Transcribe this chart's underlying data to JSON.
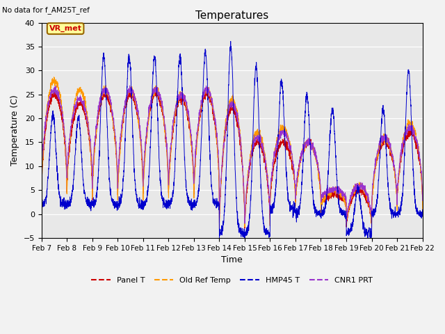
{
  "title": "Temperatures",
  "no_data_text": "No data for f_AM25T_ref",
  "annotation_text": "VR_met",
  "xlabel": "Time",
  "ylabel": "Temperature (C)",
  "ylim": [
    -5,
    40
  ],
  "xlim": [
    0,
    15
  ],
  "yticks": [
    -5,
    0,
    5,
    10,
    15,
    20,
    25,
    30,
    35,
    40
  ],
  "xtick_labels": [
    "Feb 7",
    "Feb 8",
    "Feb 9",
    "Feb 10",
    "Feb 11",
    "Feb 12",
    "Feb 13",
    "Feb 14",
    "Feb 15",
    "Feb 16",
    "Feb 17",
    "Feb 18",
    "Feb 19",
    "Feb 20",
    "Feb 21",
    "Feb 22"
  ],
  "bg_color": "#e8e8e8",
  "fig_color": "#f2f2f2",
  "colors": {
    "panel": "#cc0000",
    "old_ref": "#ff9900",
    "hmp45": "#0000cc",
    "cnr1": "#9933cc"
  },
  "legend": [
    "Panel T",
    "Old Ref Temp",
    "HMP45 T",
    "CNR1 PRT"
  ],
  "panel_peaks": [
    25,
    23,
    25,
    25,
    25,
    24,
    25,
    22,
    15,
    15,
    15,
    4,
    5,
    15,
    17
  ],
  "panel_nights": [
    4,
    4,
    3,
    3,
    3,
    3,
    3,
    -4,
    -4,
    2,
    2,
    2,
    -3,
    1,
    2
  ],
  "old_peaks": [
    28,
    26,
    26,
    26,
    26,
    25,
    26,
    24,
    17,
    18,
    15,
    5,
    6,
    16,
    19
  ],
  "old_nights": [
    3,
    3,
    2,
    2,
    2,
    2,
    2,
    -4,
    -4,
    1,
    1,
    1,
    -3,
    0,
    1
  ],
  "hmp_peaks": [
    21,
    20,
    33,
    33,
    33,
    33,
    34,
    35,
    31,
    28,
    25,
    22,
    5,
    22,
    30
  ],
  "hmp_nights": [
    2,
    2,
    2,
    2,
    2,
    2,
    2,
    -4,
    -4,
    1,
    0,
    0,
    -4,
    0,
    0
  ],
  "cnr_peaks": [
    26,
    24,
    26,
    26,
    26,
    25,
    26,
    23,
    16,
    17,
    15,
    5,
    6,
    16,
    18
  ],
  "cnr_nights": [
    7,
    7,
    5,
    5,
    5,
    5,
    5,
    -3,
    -3,
    3,
    3,
    3,
    -2,
    2,
    3
  ]
}
